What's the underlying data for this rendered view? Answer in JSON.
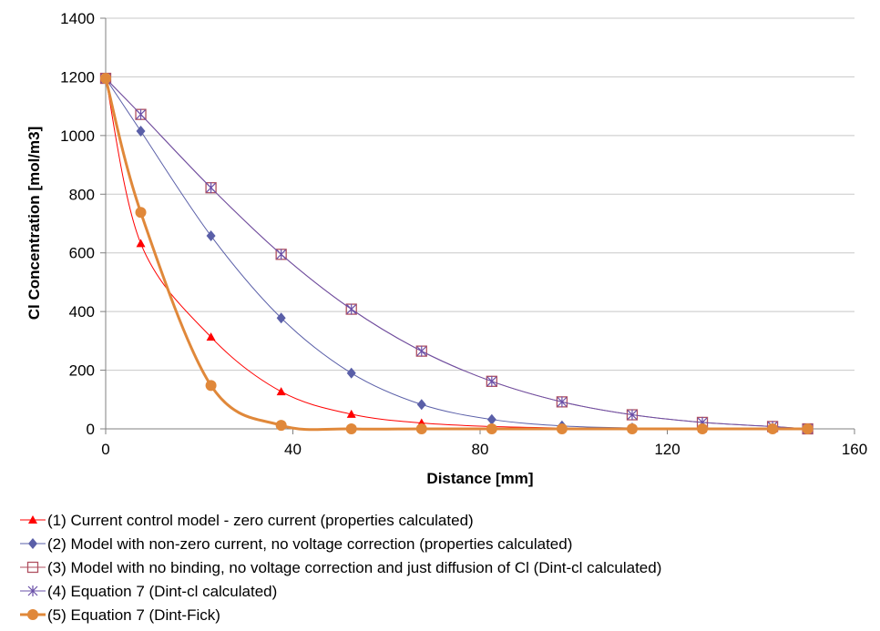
{
  "chart_data": {
    "type": "line",
    "xlabel": "Distance [mm]",
    "ylabel": "Cl Concentration [mol/m3]",
    "xlim": [
      0,
      160
    ],
    "ylim": [
      0,
      1400
    ],
    "xticks": [
      0,
      40,
      80,
      120,
      160
    ],
    "yticks": [
      0,
      200,
      400,
      600,
      800,
      1000,
      1200,
      1400
    ],
    "grid": "horizontal",
    "legend_position": "bottom",
    "series": [
      {
        "name": "(1) Current control model - zero current (properties calculated)",
        "color": "#ff0000",
        "marker": "triangle",
        "x": [
          0,
          7.5,
          22.5,
          37.5,
          52.5,
          67.5,
          82.5,
          97.5,
          112.5,
          127.5,
          142.5,
          150
        ],
        "y": [
          1195,
          632,
          313,
          127,
          50,
          20,
          8,
          3,
          1,
          0,
          0,
          0
        ]
      },
      {
        "name": "(2) Model with non-zero current, no voltage correction (properties calculated)",
        "color": "#5a5fa8",
        "marker": "diamond",
        "x": [
          0,
          7.5,
          22.5,
          37.5,
          52.5,
          67.5,
          82.5,
          97.5,
          112.5,
          127.5,
          142.5,
          150
        ],
        "y": [
          1195,
          1015,
          658,
          378,
          190,
          83,
          32,
          10,
          3,
          1,
          0,
          0
        ]
      },
      {
        "name": "(3) Model with no binding, no voltage correction and just diffusion of Cl (Dint-cl calculated)",
        "color": "#b05060",
        "marker": "square-open",
        "x": [
          0,
          7.5,
          22.5,
          37.5,
          52.5,
          67.5,
          82.5,
          97.5,
          112.5,
          127.5,
          142.5,
          150
        ],
        "y": [
          1195,
          1072,
          822,
          595,
          408,
          265,
          162,
          92,
          48,
          22,
          8,
          0
        ]
      },
      {
        "name": "(4) Equation 7 (Dint-cl calculated)",
        "color": "#6a50a8",
        "marker": "star",
        "x": [
          0,
          7.5,
          22.5,
          37.5,
          52.5,
          67.5,
          82.5,
          97.5,
          112.5,
          127.5,
          142.5,
          150
        ],
        "y": [
          1195,
          1072,
          822,
          595,
          408,
          265,
          162,
          92,
          48,
          22,
          8,
          0
        ]
      },
      {
        "name": "(5) Equation 7 (Dint-Fick)",
        "color": "#e0883a",
        "marker": "circle",
        "x": [
          0,
          7.5,
          22.5,
          37.5,
          52.5,
          67.5,
          82.5,
          97.5,
          112.5,
          127.5,
          142.5,
          150
        ],
        "y": [
          1195,
          738,
          148,
          12,
          0,
          0,
          0,
          0,
          0,
          0,
          0,
          0
        ]
      }
    ]
  }
}
